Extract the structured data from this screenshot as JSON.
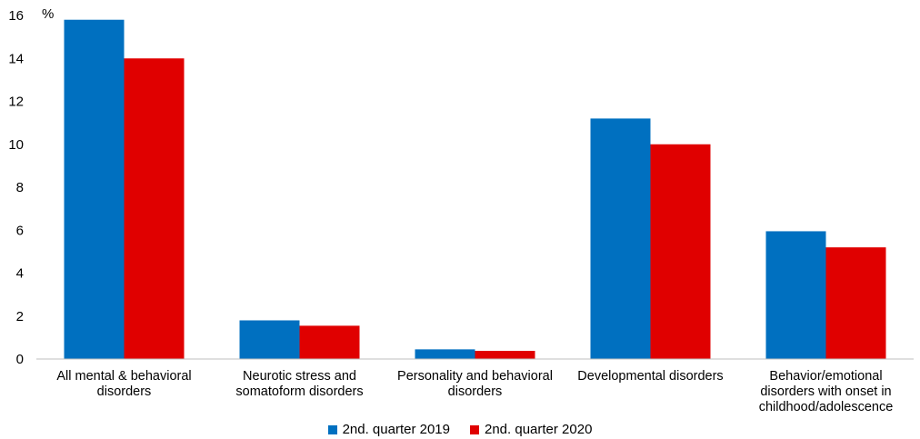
{
  "chart_data": {
    "type": "bar",
    "ylabel": "%",
    "ylim": [
      0,
      16
    ],
    "yticks": [
      0,
      2,
      4,
      6,
      8,
      10,
      12,
      14,
      16
    ],
    "grid": false,
    "legend_position": "bottom",
    "categories": [
      [
        "All mental & behavioral",
        "disorders"
      ],
      [
        "Neurotic stress and",
        "somatoform disorders"
      ],
      [
        "Personality and behavioral",
        "disorders"
      ],
      [
        "Developmental disorders"
      ],
      [
        "Behavior/emotional",
        "disorders with onset in",
        "childhood/adolescence"
      ]
    ],
    "series": [
      {
        "name": "2nd. quarter 2019",
        "color": "#0070c0",
        "values": [
          15.8,
          1.8,
          0.45,
          11.2,
          5.95
        ]
      },
      {
        "name": "2nd. quarter 2020",
        "color": "#e00000",
        "values": [
          14.0,
          1.55,
          0.38,
          10.0,
          5.2
        ]
      }
    ]
  }
}
